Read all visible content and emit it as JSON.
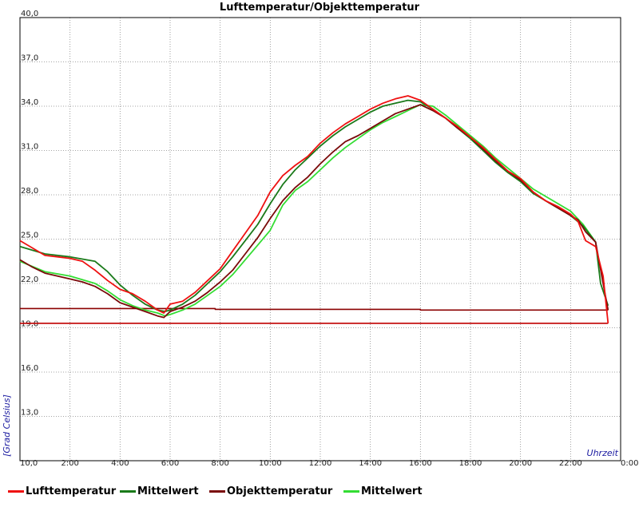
{
  "chart_data": {
    "type": "line",
    "title": "Lufttemperatur/Objekttemperatur",
    "xlabel": "Uhrzeit",
    "ylabel": "[Grad Celsius]",
    "xlim": [
      0,
      24
    ],
    "ylim": [
      10,
      40
    ],
    "x_ticks": [
      "10,0",
      "2:00",
      "4:00",
      "6:00",
      "8:00",
      "10:00",
      "12:00",
      "14:00",
      "16:00",
      "18:00",
      "20:00",
      "22:00",
      "0:00"
    ],
    "y_ticks": [
      "13,0",
      "16,0",
      "19,0",
      "22,0",
      "25,0",
      "28,0",
      "31,0",
      "34,0",
      "37,0",
      "40,0"
    ],
    "grid": true,
    "legend_position": "bottom",
    "series": [
      {
        "name": "Lufttemperatur",
        "color": "#ee1111",
        "x": [
          0,
          0.5,
          1,
          1.5,
          2,
          2.5,
          3,
          3.5,
          4,
          4.5,
          5,
          5.5,
          5.75,
          6,
          6.5,
          7,
          7.5,
          8,
          8.5,
          9,
          9.5,
          10,
          10.5,
          11,
          11.5,
          12,
          12.5,
          13,
          13.5,
          14,
          14.5,
          15,
          15.5,
          16,
          16.5,
          17,
          17.5,
          18,
          18.5,
          19,
          19.5,
          20,
          20.5,
          21,
          21.5,
          22,
          22.3,
          22.6,
          23,
          23.3,
          23.5
        ],
        "y": [
          24.9,
          24.4,
          23.9,
          23.8,
          23.7,
          23.5,
          22.9,
          22.2,
          21.6,
          21.3,
          20.8,
          20.2,
          20.0,
          20.6,
          20.8,
          21.4,
          22.2,
          23.0,
          24.2,
          25.4,
          26.6,
          28.2,
          29.3,
          30.0,
          30.6,
          31.5,
          32.2,
          32.8,
          33.3,
          33.8,
          34.2,
          34.5,
          34.7,
          34.4,
          33.8,
          33.2,
          32.6,
          31.9,
          31.2,
          30.4,
          29.6,
          29.1,
          28.2,
          27.6,
          27.2,
          26.7,
          26.2,
          24.9,
          24.5,
          22.5,
          19.3
        ]
      },
      {
        "name": "Mittelwert",
        "color": "#1a7a1a",
        "x": [
          0,
          1,
          2,
          3,
          3.5,
          4,
          4.5,
          5,
          5.5,
          5.8,
          6,
          6.5,
          7,
          7.5,
          8,
          8.5,
          9,
          9.5,
          10,
          10.5,
          11,
          11.5,
          12,
          12.5,
          13,
          13.5,
          14,
          14.5,
          15,
          15.5,
          16,
          16.5,
          17,
          17.5,
          18,
          18.5,
          19,
          19.5,
          20,
          20.5,
          21,
          21.5,
          22,
          22.5,
          23,
          23.2,
          23.5
        ],
        "y": [
          24.5,
          24.0,
          23.8,
          23.5,
          22.8,
          21.9,
          21.2,
          20.6,
          20.2,
          20.1,
          20.2,
          20.6,
          21.2,
          22.0,
          22.8,
          23.8,
          24.9,
          26.0,
          27.4,
          28.7,
          29.7,
          30.5,
          31.3,
          32.0,
          32.6,
          33.1,
          33.6,
          34.0,
          34.2,
          34.4,
          34.3,
          33.8,
          33.2,
          32.5,
          31.8,
          31.0,
          30.2,
          29.5,
          28.9,
          28.1,
          27.6,
          27.1,
          26.6,
          25.9,
          24.8,
          22.0,
          20.5
        ]
      },
      {
        "name": "Objekttemperatur",
        "color": "#7a0a0a",
        "x": [
          0,
          0.5,
          1,
          1.5,
          2,
          2.5,
          3,
          3.5,
          4,
          4.5,
          5,
          5.5,
          5.75,
          6,
          6.5,
          7,
          7.5,
          8,
          8.5,
          9,
          9.5,
          10,
          10.5,
          11,
          11.5,
          12,
          12.5,
          13,
          13.5,
          14,
          14.5,
          15,
          15.5,
          16,
          16.5,
          17,
          17.5,
          18,
          18.5,
          19,
          19.5,
          20,
          20.5,
          21,
          21.5,
          22,
          22.3,
          22.6,
          23,
          23.3,
          23.5
        ],
        "y": [
          23.6,
          23.1,
          22.7,
          22.5,
          22.3,
          22.1,
          21.8,
          21.3,
          20.7,
          20.4,
          20.1,
          19.8,
          19.7,
          20.1,
          20.4,
          20.8,
          21.4,
          22.1,
          22.9,
          24.0,
          25.1,
          26.4,
          27.6,
          28.5,
          29.2,
          30.1,
          30.9,
          31.6,
          32.0,
          32.5,
          33.0,
          33.5,
          33.8,
          34.1,
          33.7,
          33.2,
          32.5,
          31.9,
          31.1,
          30.3,
          29.6,
          29.0,
          28.2,
          27.6,
          27.1,
          26.6,
          26.3,
          25.5,
          24.8,
          22.0,
          20.2
        ]
      },
      {
        "name": "Mittelwert",
        "color": "#33dd33",
        "x": [
          0,
          1,
          2,
          3,
          3.5,
          4,
          4.5,
          5,
          5.5,
          5.8,
          6,
          6.5,
          7,
          7.5,
          8,
          8.5,
          9,
          9.5,
          10,
          10.5,
          11,
          11.5,
          12,
          12.5,
          13,
          13.5,
          14,
          14.5,
          15,
          15.5,
          16,
          16.5,
          17,
          17.5,
          18,
          18.5,
          19,
          19.5,
          20,
          20.5,
          21,
          21.5,
          22,
          22.5,
          23
        ],
        "y": [
          23.5,
          22.8,
          22.5,
          22.0,
          21.5,
          20.9,
          20.5,
          20.2,
          20.0,
          19.8,
          19.9,
          20.2,
          20.6,
          21.2,
          21.8,
          22.6,
          23.6,
          24.6,
          25.6,
          27.3,
          28.3,
          28.9,
          29.7,
          30.5,
          31.2,
          31.8,
          32.4,
          32.9,
          33.3,
          33.7,
          34.1,
          34.0,
          33.4,
          32.7,
          32.0,
          31.3,
          30.5,
          29.8,
          29.1,
          28.4,
          27.9,
          27.4,
          26.9,
          26.0,
          24.8
        ]
      },
      {
        "name": "",
        "color": "#8b0000",
        "x": [
          0,
          7.8,
          7.8,
          16,
          16,
          23.5
        ],
        "y": [
          20.3,
          20.3,
          20.25,
          20.25,
          20.2,
          20.2
        ]
      },
      {
        "name": "",
        "color": "#c00000",
        "x": [
          0,
          23.5
        ],
        "y": [
          19.3,
          19.3
        ]
      }
    ]
  }
}
